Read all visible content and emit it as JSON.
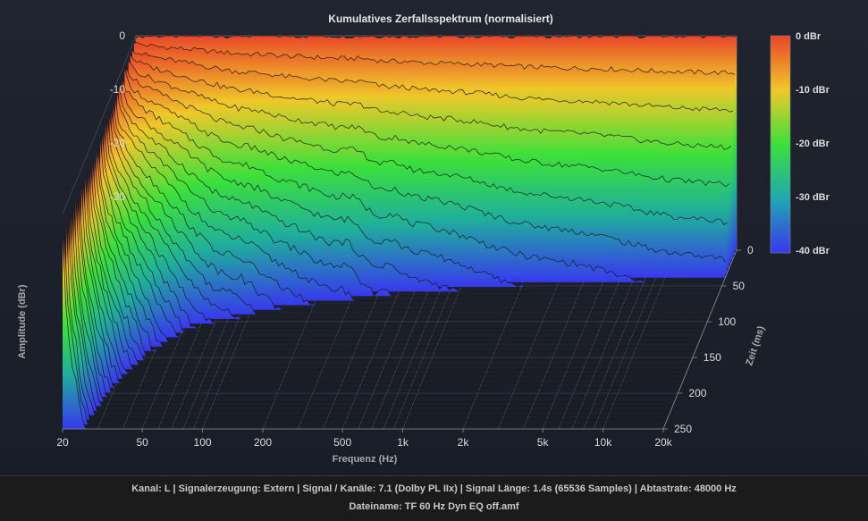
{
  "chart_data": {
    "type": "waterfall-3d",
    "title": "Kumulatives Zerfallsspektrum (normalisiert)",
    "xlabel": "Frequenz (Hz)",
    "ylabel": "Amplitude (dBr)",
    "zlabel": "Zeit (ms)",
    "x_ticks": [
      "20",
      "50",
      "100",
      "200",
      "500",
      "1k",
      "2k",
      "5k",
      "10k",
      "20k"
    ],
    "x_tick_values": [
      20,
      50,
      100,
      200,
      500,
      1000,
      2000,
      5000,
      10000,
      20000
    ],
    "y_ticks": [
      "0",
      "-10",
      "-20",
      "-30"
    ],
    "z_ticks": [
      "0",
      "50",
      "100",
      "150",
      "200",
      "250"
    ],
    "xlim": [
      20,
      20000
    ],
    "ylim": [
      -40,
      0
    ],
    "zlim": [
      0,
      250
    ],
    "x_scale": "log",
    "slice_count": 40,
    "colorbar": {
      "labels": [
        "0 dBr",
        "-10 dBr",
        "-20 dBr",
        "-30 dBr",
        "-40 dBr"
      ],
      "colors": [
        "#e8462a",
        "#e8c82a",
        "#2adc2a",
        "#2a8ad0",
        "#3a3ae8"
      ]
    },
    "grid": true
  },
  "footer": {
    "line1": "Kanal: L  |  Signalerzeugung: Extern   |  Signal / Kanäle: 7.1 (Dolby PL IIx)  |  Signal Länge: 1.4s (65536 Samples)  |  Abtastrate: 48000 Hz",
    "line2": "Dateiname: TF 60 Hz Dyn EQ off.amf"
  }
}
